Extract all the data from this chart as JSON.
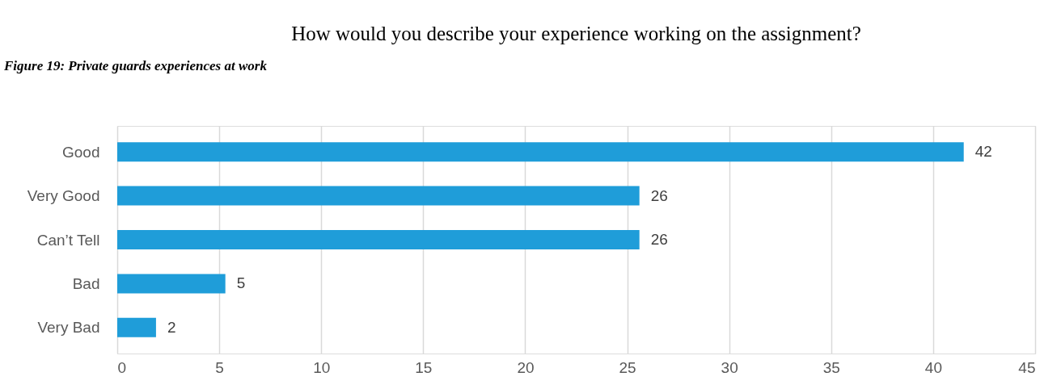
{
  "chart_data": {
    "type": "bar",
    "orientation": "horizontal",
    "title": "How would you describe your experience working on the assignment?",
    "annotations": [
      "Figure 19: Private guards experiences at work"
    ],
    "categories": [
      "Good",
      "Very Good",
      "Can’t Tell",
      "Bad",
      "Very Bad"
    ],
    "values": [
      41.5,
      25.6,
      25.6,
      5.3,
      1.9
    ],
    "value_labels": [
      "42",
      "26",
      "26",
      "5",
      "2"
    ],
    "color": "#1f9dd9",
    "xlim": [
      0,
      45
    ],
    "xticks": [
      0,
      5,
      10,
      15,
      20,
      25,
      30,
      35,
      40,
      45
    ],
    "grid": "x"
  }
}
